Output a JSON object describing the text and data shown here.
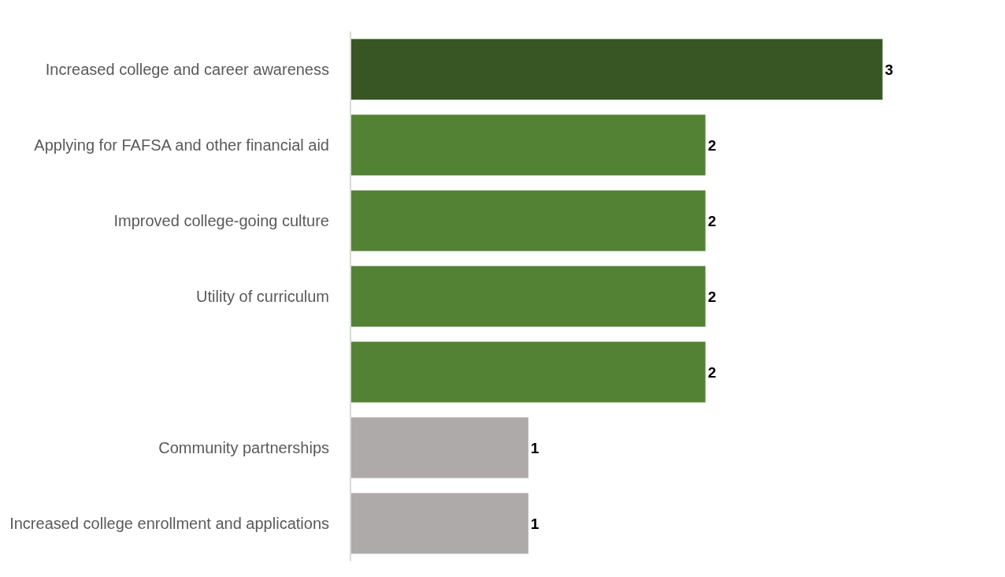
{
  "chart_data": {
    "type": "bar",
    "orientation": "horizontal",
    "categories": [
      "Increased college and career awareness",
      "Applying for FAFSA and other financial aid",
      "Improved college-going culture",
      "Utility of curriculum",
      null,
      "Community partnerships",
      "Increased college enrollment and applications"
    ],
    "values": [
      3,
      2,
      2,
      2,
      2,
      1,
      1
    ],
    "colors": [
      "#375623",
      "#548235",
      "#548235",
      "#548235",
      "#548235",
      "#aeaaaa",
      "#aeaaaa"
    ],
    "data_labels": true,
    "legend": false
  }
}
